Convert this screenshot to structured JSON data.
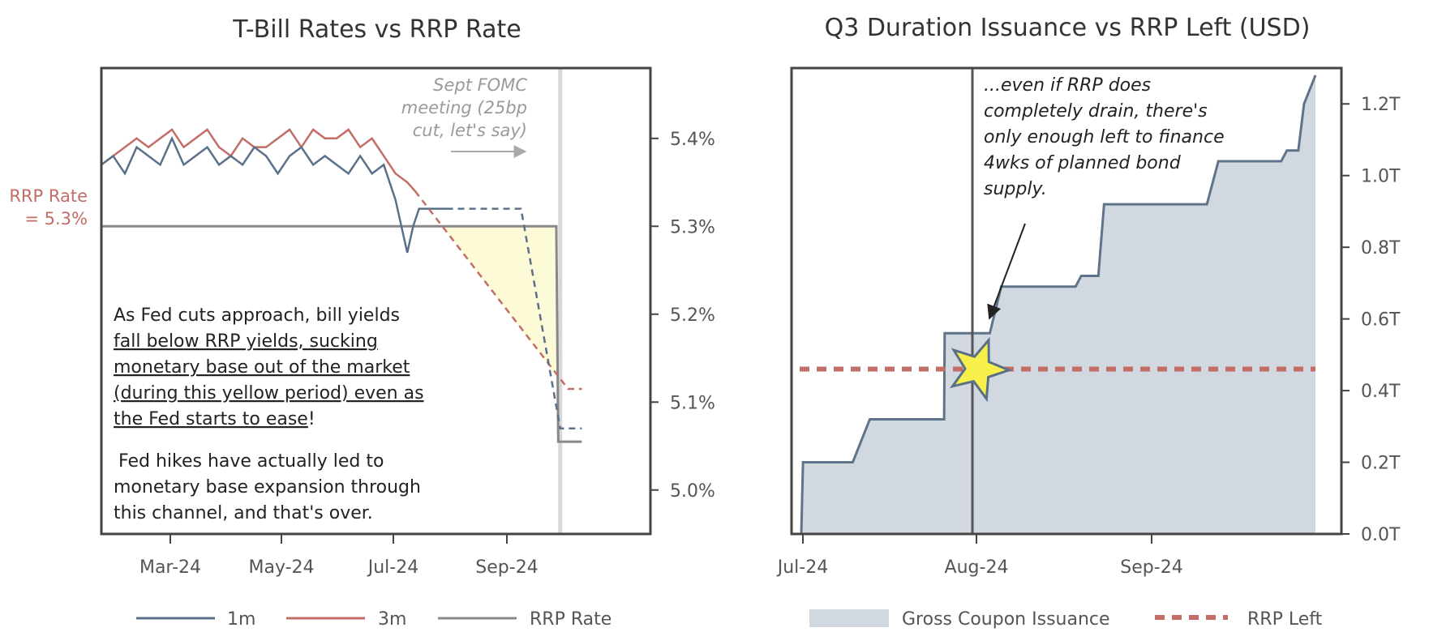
{
  "chart_data": [
    {
      "type": "line",
      "title": "T-Bill Rates vs RRP Rate",
      "x_ticks": [
        "Mar-24",
        "May-24",
        "Jul-24",
        "Sep-24"
      ],
      "y_ticks": [
        "5.0%",
        "5.1%",
        "5.2%",
        "5.3%",
        "5.4%"
      ],
      "ylim": [
        4.95,
        5.48
      ],
      "xlim": [
        0,
        280
      ],
      "series": [
        {
          "name": "1m",
          "color": "#5a7089",
          "x": [
            0,
            6,
            12,
            18,
            24,
            30,
            36,
            42,
            48,
            54,
            60,
            66,
            72,
            78,
            84,
            90,
            96,
            102,
            108,
            114,
            120,
            126,
            132,
            138,
            144,
            150,
            153,
            156,
            159,
            162,
            166,
            170,
            176
          ],
          "y": [
            5.37,
            5.38,
            5.36,
            5.39,
            5.38,
            5.37,
            5.4,
            5.37,
            5.38,
            5.39,
            5.37,
            5.38,
            5.37,
            5.39,
            5.38,
            5.36,
            5.38,
            5.39,
            5.37,
            5.38,
            5.37,
            5.36,
            5.38,
            5.36,
            5.37,
            5.33,
            5.3,
            5.27,
            5.3,
            5.32,
            5.32,
            5.32,
            5.32
          ]
        },
        {
          "name": "3m",
          "color": "#c26d66",
          "x": [
            0,
            6,
            12,
            18,
            24,
            30,
            36,
            42,
            48,
            54,
            60,
            66,
            72,
            78,
            84,
            90,
            96,
            102,
            108,
            114,
            120,
            126,
            132,
            138,
            144,
            150,
            156,
            160
          ],
          "y": [
            5.37,
            5.38,
            5.39,
            5.4,
            5.39,
            5.4,
            5.41,
            5.39,
            5.4,
            5.41,
            5.39,
            5.38,
            5.4,
            5.39,
            5.39,
            5.4,
            5.41,
            5.39,
            5.41,
            5.4,
            5.4,
            5.41,
            5.39,
            5.4,
            5.38,
            5.36,
            5.35,
            5.34
          ]
        },
        {
          "name": "RRP Rate",
          "color": "#888888",
          "x": [
            0,
            232,
            233,
            245
          ],
          "y": [
            5.3,
            5.3,
            5.055,
            5.055
          ]
        }
      ],
      "projections": {
        "3m": {
          "x": [
            160,
            238,
            245
          ],
          "y": [
            5.34,
            5.115,
            5.115
          ],
          "color": "#c26d66"
        },
        "1m": {
          "x": [
            176,
            214,
            234,
            236,
            245
          ],
          "y": [
            5.32,
            5.32,
            5.07,
            5.07,
            5.07
          ],
          "color": "#5a7089"
        }
      },
      "fomc_line_x": 234,
      "legend": [
        "1m",
        "3m",
        "RRP Rate"
      ],
      "legend_position": "bottom",
      "annotations": {
        "rrp_label_line1": "RRP Rate",
        "rrp_label_line2": "= 5.3%",
        "fomc_line1": "Sept FOMC",
        "fomc_line2": "meeting (25bp",
        "fomc_line3": "cut, let's say)",
        "box_lines": [
          "As Fed cuts approach, bill yields",
          "fall below RRP yields, sucking",
          "monetary base out of the market",
          "(during this yellow period) even as",
          "the Fed starts to ease",
          "Fed hikes have actually led to",
          "monetary base expansion through",
          "this channel, and that's over."
        ],
        "exclaim": "!"
      }
    },
    {
      "type": "area",
      "title": "Q3 Duration Issuance vs RRP Left (USD)",
      "x_ticks": [
        "Jul-24",
        "Aug-24",
        "Sep-24"
      ],
      "y_ticks": [
        "0.0T",
        "0.2T",
        "0.4T",
        "0.6T",
        "0.8T",
        "1.0T",
        "1.2T"
      ],
      "ylim": [
        0,
        1.3
      ],
      "series": [
        {
          "name": "Gross Coupon Issuance",
          "color": "#5f748a",
          "fill": "#d2d8e0",
          "x": [
            0,
            0.3,
            2,
            9,
            12,
            24,
            25,
            25.1,
            33,
            35,
            42,
            48,
            49,
            52,
            53,
            59,
            60,
            71,
            73,
            80,
            81,
            84,
            85,
            87,
            88,
            90
          ],
          "y": [
            0,
            0.2,
            0.2,
            0.2,
            0.32,
            0.32,
            0.32,
            0.56,
            0.56,
            0.69,
            0.69,
            0.69,
            0.72,
            0.72,
            0.92,
            0.92,
            0.92,
            0.92,
            1.04,
            1.04,
            1.04,
            1.04,
            1.07,
            1.07,
            1.2,
            1.28
          ]
        },
        {
          "name": "RRP Left",
          "color": "#c26d66",
          "y": 0.46
        }
      ],
      "legend": [
        "Gross Coupon Issuance",
        "RRP Left"
      ],
      "legend_position": "bottom",
      "annotations": {
        "note_lines": [
          "...even if RRP does",
          "completely drain, there's",
          "only enough left to finance",
          "4wks of planned bond",
          "supply."
        ]
      }
    }
  ]
}
